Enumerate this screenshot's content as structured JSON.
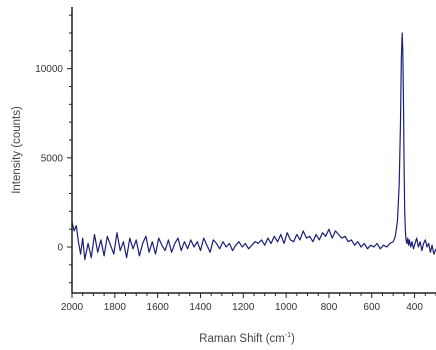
{
  "chart_data": {
    "type": "line",
    "title": "",
    "xlabel": "Raman Shift (cm",
    "xlabel_sup": "-1",
    "xlabel_end": ")",
    "ylabel": "Intensity (counts)",
    "x_reversed": true,
    "xlim": [
      2000,
      300
    ],
    "ylim": [
      -2000,
      13500
    ],
    "x_ticks": [
      2000,
      1800,
      1600,
      1400,
      1200,
      1000,
      800,
      600,
      400
    ],
    "y_ticks": [
      0,
      5000,
      10000
    ],
    "x_tick_labels": [
      "2000",
      "1800",
      "1600",
      "1400",
      "1200",
      "1000",
      "800",
      "600",
      "400"
    ],
    "y_tick_labels": [
      "0",
      "5000",
      "10000"
    ],
    "grid": false,
    "legend": false,
    "line_color": "#1c1f78",
    "series": [
      {
        "x": [
          2000,
          1990,
          1980,
          1970,
          1960,
          1950,
          1940,
          1925,
          1910,
          1895,
          1880,
          1865,
          1850,
          1835,
          1820,
          1805,
          1790,
          1775,
          1760,
          1745,
          1730,
          1715,
          1700,
          1685,
          1670,
          1655,
          1640,
          1625,
          1610,
          1595,
          1580,
          1565,
          1550,
          1535,
          1520,
          1505,
          1490,
          1475,
          1460,
          1445,
          1430,
          1415,
          1400,
          1385,
          1370,
          1355,
          1340,
          1325,
          1310,
          1295,
          1280,
          1265,
          1250,
          1235,
          1220,
          1205,
          1190,
          1175,
          1160,
          1145,
          1130,
          1115,
          1100,
          1085,
          1070,
          1055,
          1040,
          1025,
          1010,
          995,
          980,
          965,
          950,
          935,
          920,
          905,
          890,
          875,
          860,
          845,
          830,
          815,
          800,
          785,
          770,
          755,
          740,
          725,
          710,
          695,
          680,
          665,
          650,
          635,
          620,
          605,
          590,
          575,
          560,
          545,
          530,
          515,
          500,
          490,
          480,
          472,
          466,
          462,
          458,
          455,
          452,
          449,
          446,
          443,
          440,
          436,
          432,
          428,
          424,
          418,
          412,
          405,
          398,
          390,
          382,
          374,
          366,
          358,
          350,
          342,
          334,
          326,
          318,
          310,
          300
        ],
        "y": [
          1400,
          900,
          1200,
          300,
          -400,
          500,
          -700,
          200,
          -600,
          700,
          -300,
          400,
          -500,
          600,
          100,
          -400,
          800,
          -200,
          300,
          -600,
          500,
          -100,
          400,
          -500,
          200,
          600,
          -300,
          300,
          -400,
          500,
          100,
          -200,
          400,
          -300,
          200,
          500,
          -200,
          300,
          -100,
          400,
          0,
          300,
          -200,
          500,
          100,
          -300,
          400,
          200,
          -100,
          300,
          0,
          200,
          -200,
          100,
          300,
          0,
          200,
          -100,
          100,
          300,
          200,
          400,
          100,
          500,
          200,
          600,
          300,
          700,
          200,
          800,
          400,
          300,
          700,
          400,
          900,
          500,
          600,
          300,
          700,
          400,
          800,
          600,
          1000,
          500,
          900,
          700,
          500,
          600,
          300,
          400,
          100,
          300,
          0,
          200,
          -100,
          100,
          0,
          200,
          -100,
          100,
          0,
          200,
          300,
          600,
          1500,
          3500,
          7000,
          10500,
          12000,
          11000,
          8000,
          4500,
          2000,
          900,
          400,
          200,
          500,
          100,
          400,
          0,
          300,
          -100,
          200,
          500,
          0,
          300,
          -200,
          200,
          400,
          0,
          200,
          -300,
          100,
          -400,
          -100
        ]
      }
    ]
  }
}
